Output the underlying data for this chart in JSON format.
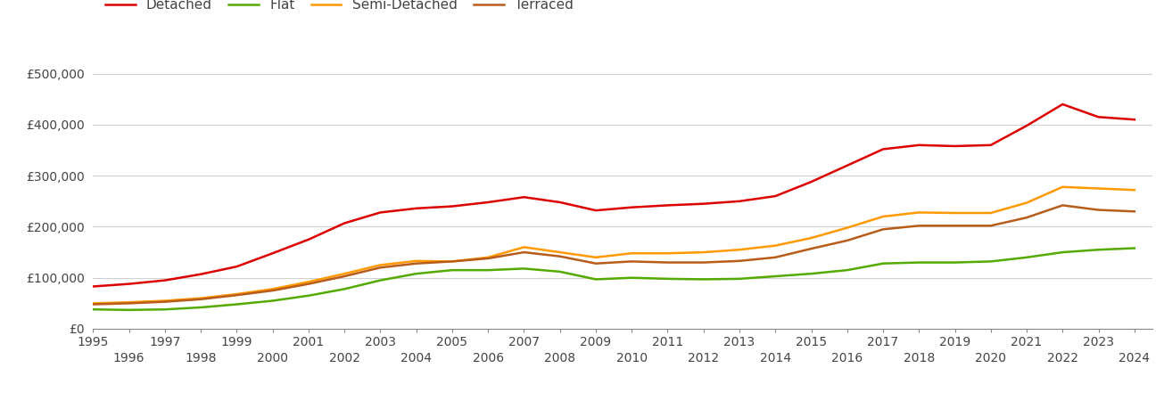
{
  "years": [
    1995,
    1996,
    1997,
    1998,
    1999,
    2000,
    2001,
    2002,
    2003,
    2004,
    2005,
    2006,
    2007,
    2008,
    2009,
    2010,
    2011,
    2012,
    2013,
    2014,
    2015,
    2016,
    2017,
    2018,
    2019,
    2020,
    2021,
    2022,
    2023,
    2024
  ],
  "detached": [
    83000,
    88000,
    95000,
    107000,
    122000,
    148000,
    175000,
    207000,
    228000,
    236000,
    240000,
    248000,
    258000,
    248000,
    232000,
    238000,
    242000,
    245000,
    250000,
    260000,
    288000,
    320000,
    352000,
    360000,
    358000,
    360000,
    398000,
    440000,
    415000,
    410000
  ],
  "flat": [
    38000,
    37000,
    38000,
    42000,
    48000,
    55000,
    65000,
    78000,
    95000,
    108000,
    115000,
    115000,
    118000,
    112000,
    97000,
    100000,
    98000,
    97000,
    98000,
    103000,
    108000,
    115000,
    128000,
    130000,
    130000,
    132000,
    140000,
    150000,
    155000,
    158000
  ],
  "semi_detached": [
    50000,
    52000,
    55000,
    60000,
    68000,
    78000,
    92000,
    108000,
    125000,
    133000,
    132000,
    140000,
    160000,
    150000,
    140000,
    148000,
    148000,
    150000,
    155000,
    163000,
    178000,
    198000,
    220000,
    228000,
    227000,
    227000,
    247000,
    278000,
    275000,
    272000
  ],
  "terraced": [
    48000,
    50000,
    53000,
    58000,
    66000,
    75000,
    88000,
    103000,
    120000,
    128000,
    132000,
    138000,
    150000,
    142000,
    128000,
    132000,
    130000,
    130000,
    133000,
    140000,
    157000,
    173000,
    195000,
    202000,
    202000,
    202000,
    218000,
    242000,
    233000,
    230000
  ],
  "colors": {
    "detached": "#dd0000",
    "flat": "#55aa00",
    "semi_detached": "#ff9900",
    "terraced": "#b85c1a"
  },
  "legend_labels": [
    "Detached",
    "Flat",
    "Semi-Detached",
    "Terraced"
  ],
  "ylim": [
    0,
    550000
  ],
  "yticks": [
    0,
    100000,
    200000,
    300000,
    400000,
    500000
  ],
  "ytick_labels": [
    "£0",
    "£100,000",
    "£200,000",
    "£300,000",
    "£400,000",
    "£500,000"
  ],
  "background_color": "#ffffff",
  "grid_color": "#d0d0d0",
  "line_width": 1.8,
  "tick_fontsize": 10,
  "legend_fontsize": 11,
  "label_color": "#444444"
}
